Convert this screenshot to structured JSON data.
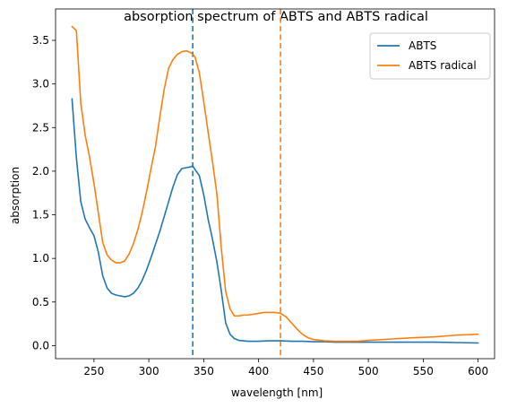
{
  "chart_data": {
    "type": "line",
    "title": "absorption spectrum of ABTS and ABTS radical",
    "xlabel": "wavelength [nm]",
    "ylabel": "absorption",
    "xlim": [
      215,
      615
    ],
    "ylim": [
      -0.15,
      3.86
    ],
    "xticks": [
      250,
      300,
      350,
      400,
      450,
      500,
      550,
      600
    ],
    "xtick_labels": [
      "250",
      "300",
      "350",
      "400",
      "450",
      "500",
      "550",
      "600"
    ],
    "yticks": [
      0.0,
      0.5,
      1.0,
      1.5,
      2.0,
      2.5,
      3.0,
      3.5
    ],
    "ytick_labels": [
      "0.0",
      "0.5",
      "1.0",
      "1.5",
      "2.0",
      "2.5",
      "3.0",
      "3.5"
    ],
    "grid": false,
    "legend_position": "top-right",
    "series": [
      {
        "name": "ABTS",
        "color": "#1f77b4",
        "x": [
          230,
          234,
          238,
          242,
          246,
          250,
          254,
          258,
          262,
          266,
          270,
          274,
          278,
          282,
          286,
          290,
          294,
          298,
          302,
          306,
          310,
          314,
          318,
          322,
          326,
          330,
          334,
          338,
          340,
          342,
          346,
          350,
          354,
          358,
          362,
          366,
          370,
          374,
          378,
          382,
          386,
          390,
          395,
          400,
          410,
          420,
          430,
          440,
          450,
          460,
          470,
          480,
          490,
          500,
          520,
          540,
          560,
          580,
          600
        ],
        "y": [
          2.83,
          2.15,
          1.65,
          1.45,
          1.35,
          1.26,
          1.07,
          0.8,
          0.66,
          0.6,
          0.58,
          0.57,
          0.56,
          0.57,
          0.6,
          0.66,
          0.75,
          0.87,
          1.01,
          1.16,
          1.31,
          1.48,
          1.65,
          1.82,
          1.96,
          2.03,
          2.04,
          2.05,
          2.06,
          2.02,
          1.95,
          1.73,
          1.45,
          1.22,
          0.96,
          0.63,
          0.26,
          0.13,
          0.08,
          0.06,
          0.055,
          0.05,
          0.05,
          0.05,
          0.055,
          0.055,
          0.05,
          0.05,
          0.045,
          0.045,
          0.04,
          0.04,
          0.04,
          0.04,
          0.04,
          0.04,
          0.04,
          0.035,
          0.03
        ]
      },
      {
        "name": "ABTS radical",
        "color": "#ff7f0e",
        "x": [
          230,
          234,
          238,
          242,
          246,
          250,
          254,
          258,
          262,
          266,
          270,
          274,
          278,
          282,
          286,
          290,
          294,
          298,
          302,
          306,
          310,
          314,
          318,
          322,
          326,
          330,
          334,
          338,
          340,
          342,
          346,
          350,
          354,
          358,
          362,
          366,
          370,
          374,
          378,
          382,
          386,
          390,
          395,
          400,
          405,
          410,
          415,
          420,
          425,
          430,
          435,
          440,
          445,
          450,
          460,
          470,
          480,
          490,
          500,
          520,
          540,
          560,
          580,
          600
        ],
        "y": [
          3.66,
          3.61,
          2.78,
          2.41,
          2.16,
          1.86,
          1.52,
          1.18,
          1.04,
          0.98,
          0.95,
          0.95,
          0.97,
          1.05,
          1.17,
          1.33,
          1.53,
          1.77,
          2.03,
          2.28,
          2.62,
          2.94,
          3.18,
          3.28,
          3.34,
          3.37,
          3.38,
          3.36,
          3.34,
          3.31,
          3.13,
          2.8,
          2.45,
          2.11,
          1.74,
          1.12,
          0.62,
          0.42,
          0.34,
          0.34,
          0.35,
          0.35,
          0.36,
          0.37,
          0.38,
          0.38,
          0.38,
          0.37,
          0.33,
          0.26,
          0.19,
          0.13,
          0.09,
          0.07,
          0.055,
          0.05,
          0.05,
          0.05,
          0.06,
          0.075,
          0.09,
          0.1,
          0.12,
          0.13
        ]
      }
    ],
    "vlines": [
      {
        "x": 340,
        "color": "#1f77b4",
        "style": "dashed"
      },
      {
        "x": 420,
        "color": "#ff7f0e",
        "style": "dashed"
      }
    ]
  }
}
